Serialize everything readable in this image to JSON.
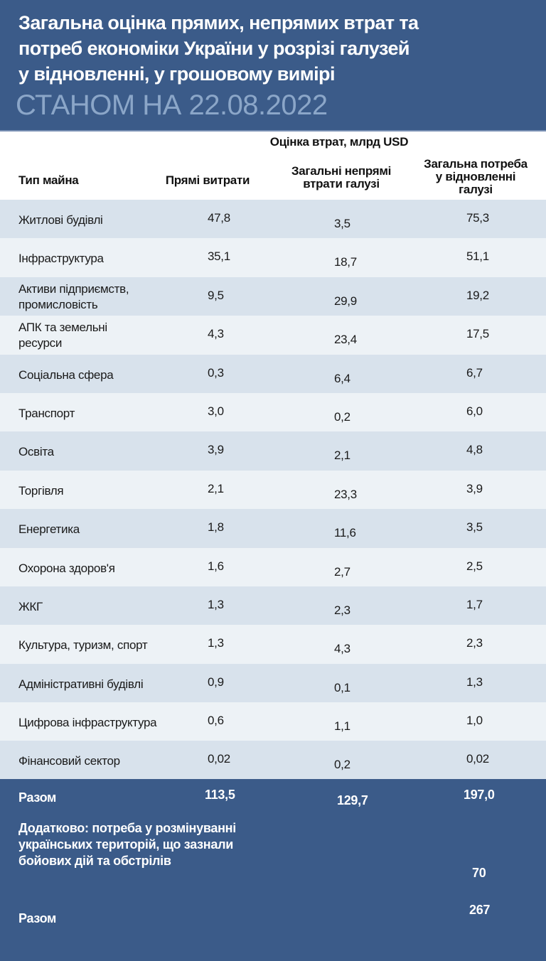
{
  "header": {
    "title_lines": [
      "Загальна оцінка прямих, непрямих втрат та",
      "потреб економіки України у розрізі галузей",
      "у відновленні, у грошовому вимірі"
    ],
    "subtitle": "СТАНОМ НА 22.08.2022",
    "background_color": "#3b5b89",
    "subtitle_color": "#8ba6c8"
  },
  "table": {
    "group_header": "Оцінка втрат, млрд USD",
    "columns": {
      "type": "Тип майна",
      "direct": "Прямі витрати",
      "indirect": [
        "Загальні непрямі",
        "втрати галузі"
      ],
      "need": [
        "Загальна потреба",
        "у відновленні",
        "галузі"
      ]
    },
    "rows": [
      {
        "name": [
          "Житлові будівлі"
        ],
        "direct": "47,8",
        "indirect": "3,5",
        "need": "75,3"
      },
      {
        "name": [
          "Інфраструктура"
        ],
        "direct": "35,1",
        "indirect": "18,7",
        "need": "51,1"
      },
      {
        "name": [
          "Активи підприємств,",
          "промисловість"
        ],
        "direct": "9,5",
        "indirect": "29,9",
        "need": "19,2"
      },
      {
        "name": [
          "АПК та земельні",
          "ресурси"
        ],
        "direct": "4,3",
        "indirect": "23,4",
        "need": "17,5"
      },
      {
        "name": [
          "Соціальна сфера"
        ],
        "direct": "0,3",
        "indirect": "6,4",
        "need": "6,7"
      },
      {
        "name": [
          "Транспорт"
        ],
        "direct": "3,0",
        "indirect": "0,2",
        "need": "6,0"
      },
      {
        "name": [
          "Освіта"
        ],
        "direct": "3,9",
        "indirect": "2,1",
        "need": "4,8"
      },
      {
        "name": [
          "Торгівля"
        ],
        "direct": "2,1",
        "indirect": "23,3",
        "need": "3,9"
      },
      {
        "name": [
          "Енергетика"
        ],
        "direct": "1,8",
        "indirect": "11,6",
        "need": "3,5"
      },
      {
        "name": [
          "Охорона здоров'я"
        ],
        "direct": "1,6",
        "indirect": "2,7",
        "need": "2,5"
      },
      {
        "name": [
          "ЖКГ"
        ],
        "direct": "1,3",
        "indirect": "2,3",
        "need": "1,7"
      },
      {
        "name": [
          "Культура, туризм, спорт"
        ],
        "direct": "1,3",
        "indirect": "4,3",
        "need": "2,3"
      },
      {
        "name": [
          "Адміністративні будівлі"
        ],
        "direct": "0,9",
        "indirect": "0,1",
        "need": "1,3"
      },
      {
        "name": [
          "Цифрова інфраструктура"
        ],
        "direct": "0,6",
        "indirect": "1,1",
        "need": "1,0"
      },
      {
        "name": [
          "Фінансовий сектор"
        ],
        "direct": "0,02",
        "indirect": "0,2",
        "need": "0,02"
      }
    ],
    "row_colors": {
      "odd": "#d8e2ec",
      "even": "#edf2f6"
    }
  },
  "footer": {
    "total_label": "Разом",
    "total_direct": "113,5",
    "total_indirect": "129,7",
    "total_need": "197,0",
    "note_lines": [
      "Додатково: потреба у розмінуванні",
      "українських територій, що зазнали",
      "бойових дій та обстрілів"
    ],
    "demining_value": "70",
    "grand_total_label": "Разом",
    "grand_total_value": "267"
  }
}
